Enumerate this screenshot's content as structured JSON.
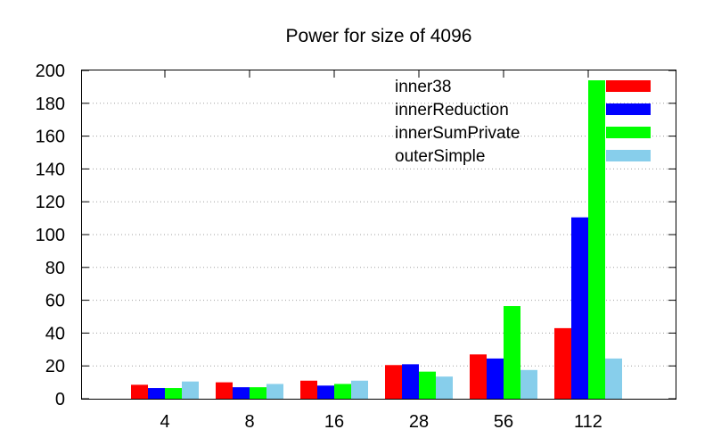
{
  "chart_data": {
    "type": "bar",
    "title": "Power for size of 4096",
    "xlabel": "",
    "ylabel": "",
    "categories": [
      "4",
      "8",
      "16",
      "28",
      "56",
      "112"
    ],
    "ylim": [
      0,
      200
    ],
    "yticks": [
      0,
      20,
      40,
      60,
      80,
      100,
      120,
      140,
      160,
      180,
      200
    ],
    "grid": true,
    "legend_position": "top-right",
    "series": [
      {
        "name": "inner38",
        "color": "#ff0000",
        "values": [
          8.5,
          10,
          11,
          20.5,
          27,
          43
        ]
      },
      {
        "name": "innerReduction",
        "color": "#0000ff",
        "values": [
          6.5,
          7,
          8,
          21,
          24.5,
          110.5
        ]
      },
      {
        "name": "innerSumPrivate",
        "color": "#00ff00",
        "values": [
          6.5,
          7,
          9,
          16.5,
          56.5,
          194
        ]
      },
      {
        "name": "outerSimple",
        "color": "#87ceeb",
        "values": [
          10.5,
          9,
          11,
          13.5,
          17.5,
          24.5
        ]
      }
    ]
  }
}
